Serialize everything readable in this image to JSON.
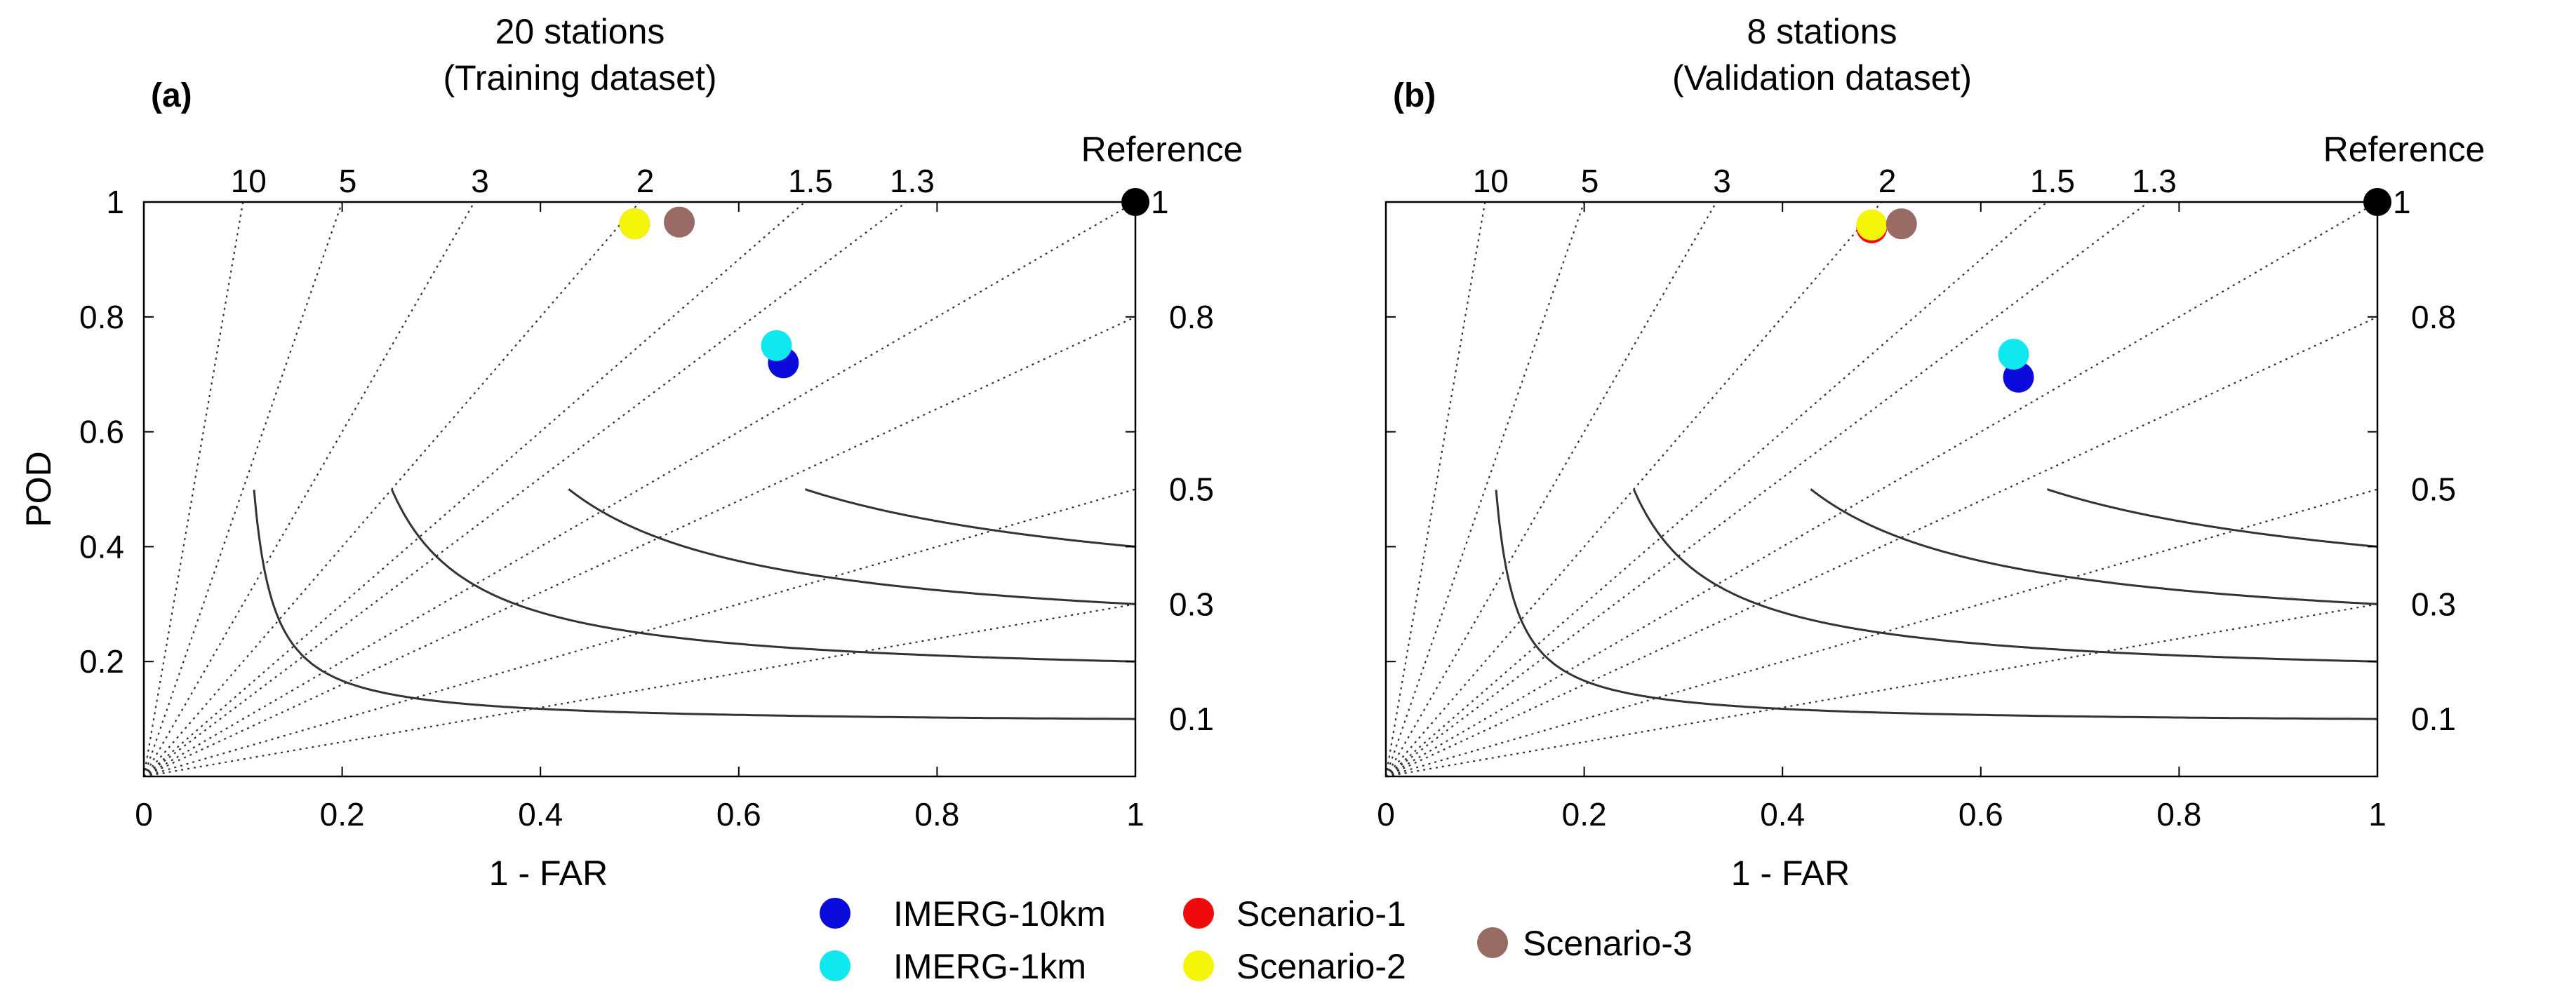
{
  "chart_data": [
    {
      "type": "scatter",
      "subtype": "performance-diagram",
      "panel_label": "(a)",
      "title": "20 stations",
      "subtitle": "(Training dataset)",
      "xlabel": "1 - FAR",
      "ylabel": "POD",
      "xlim": [
        0,
        1
      ],
      "ylim": [
        0,
        1
      ],
      "x_ticks": [
        "0",
        "0.2",
        "0.4",
        "0.6",
        "0.8",
        "1"
      ],
      "y_ticks": [
        "0.2",
        "0.4",
        "0.6",
        "0.8",
        "1"
      ],
      "csi_labels": [
        "0.1",
        "0.3",
        "0.5",
        "0.8",
        "1"
      ],
      "bias_labels": [
        "10",
        "5",
        "3",
        "2",
        "1.5",
        "1.3"
      ],
      "reference_label": "Reference",
      "reference_point": {
        "x": 1,
        "y": 1
      },
      "points": [
        {
          "series": "IMERG-10km",
          "x": 0.645,
          "y": 0.72
        },
        {
          "series": "IMERG-1km",
          "x": 0.638,
          "y": 0.75
        },
        {
          "series": "Scenario-1",
          "x": 0.495,
          "y": 0.962
        },
        {
          "series": "Scenario-2",
          "x": 0.495,
          "y": 0.962
        },
        {
          "series": "Scenario-3",
          "x": 0.54,
          "y": 0.965
        }
      ]
    },
    {
      "type": "scatter",
      "subtype": "performance-diagram",
      "panel_label": "(b)",
      "title": "8 stations",
      "subtitle": "(Validation dataset)",
      "xlabel": "1 - FAR",
      "ylabel": "",
      "xlim": [
        0,
        1
      ],
      "ylim": [
        0,
        1
      ],
      "x_ticks": [
        "0",
        "0.2",
        "0.4",
        "0.6",
        "0.8",
        "1"
      ],
      "y_ticks": [],
      "csi_labels": [
        "0.1",
        "0.3",
        "0.5",
        "0.8",
        "1"
      ],
      "bias_labels": [
        "10",
        "5",
        "3",
        "2",
        "1.5",
        "1.3"
      ],
      "reference_label": "Reference",
      "reference_point": {
        "x": 1,
        "y": 1
      },
      "points": [
        {
          "series": "IMERG-10km",
          "x": 0.638,
          "y": 0.695
        },
        {
          "series": "IMERG-1km",
          "x": 0.633,
          "y": 0.735
        },
        {
          "series": "Scenario-1",
          "x": 0.49,
          "y": 0.955
        },
        {
          "series": "Scenario-2",
          "x": 0.49,
          "y": 0.96
        },
        {
          "series": "Scenario-3",
          "x": 0.52,
          "y": 0.962
        }
      ]
    }
  ],
  "legend": {
    "items": [
      {
        "label": "IMERG-10km",
        "color": "#0a0adc"
      },
      {
        "label": "IMERG-1km",
        "color": "#10e8f0"
      },
      {
        "label": "Scenario-1",
        "color": "#f00a0a"
      },
      {
        "label": "Scenario-2",
        "color": "#f5f50a"
      },
      {
        "label": "Scenario-3",
        "color": "#9a6a64"
      }
    ]
  },
  "colors": {
    "reference": "#000000",
    "csi_curve": "#333333",
    "bias_line": "#333333"
  }
}
